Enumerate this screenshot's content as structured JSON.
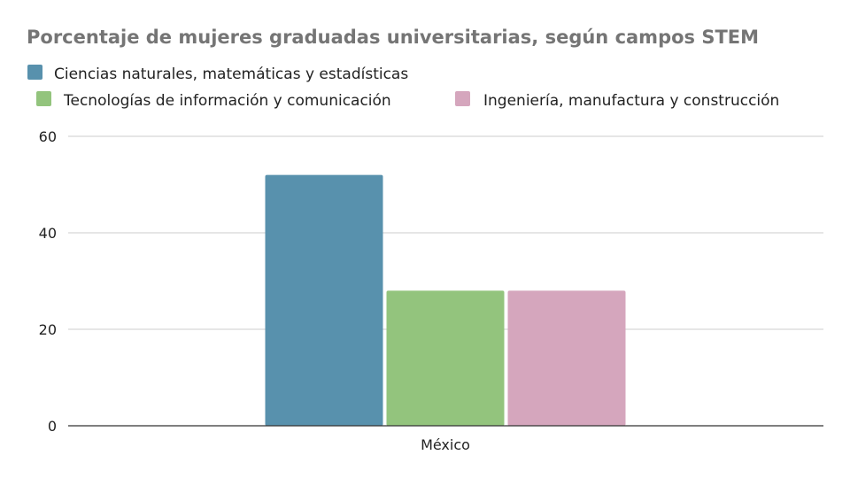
{
  "chart_data": {
    "type": "bar",
    "title": "Porcentaje de mujeres graduadas universitarias, según campos STEM",
    "categories": [
      "México"
    ],
    "series": [
      {
        "name": "Ciencias naturales, matemáticas y estadísticas",
        "values": [
          52
        ],
        "color": "#5891AD"
      },
      {
        "name": "Tecnologías de información y comunicación",
        "values": [
          28
        ],
        "color": "#93C47D"
      },
      {
        "name": "Ingeniería, manufactura y construcción",
        "values": [
          28
        ],
        "color": "#D5A6BD"
      }
    ],
    "ylim": [
      0,
      60
    ],
    "yticks": [
      0,
      20,
      40,
      60
    ],
    "grid": true,
    "legend_position": "top"
  }
}
